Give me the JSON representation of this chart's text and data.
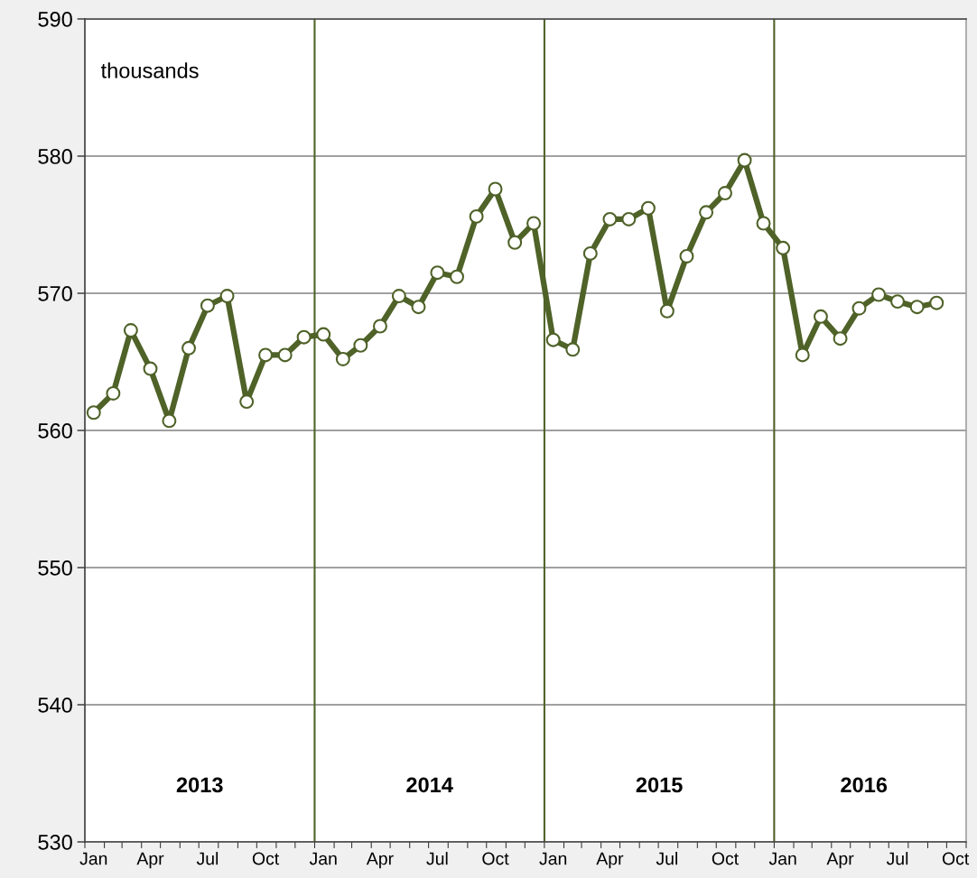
{
  "chart_data": {
    "type": "line",
    "x": [
      "2013-01-15",
      "2013-02-15",
      "2013-03-15",
      "2013-04-15",
      "2013-05-15",
      "2013-06-15",
      "2013-07-15",
      "2013-08-15",
      "2013-09-15",
      "2013-10-15",
      "2013-11-15",
      "2013-12-15",
      "2014-01-15",
      "2014-02-15",
      "2014-03-15",
      "2014-04-15",
      "2014-05-15",
      "2014-06-15",
      "2014-07-15",
      "2014-08-15",
      "2014-09-15",
      "2014-10-15",
      "2014-11-15",
      "2014-12-15",
      "2015-01-15",
      "2015-02-15",
      "2015-03-15",
      "2015-04-15",
      "2015-05-15",
      "2015-06-15",
      "2015-07-15",
      "2015-08-15",
      "2015-09-15",
      "2015-10-15",
      "2015-11-15",
      "2015-12-15",
      "2016-01-15",
      "2016-02-15",
      "2016-03-15",
      "2016-04-15",
      "2016-05-15",
      "2016-06-15",
      "2016-07-15",
      "2016-08-15",
      "2016-09-15"
    ],
    "series": [
      {
        "color": "#4f6228",
        "values": [
          561.3,
          562.7,
          567.3,
          564.5,
          560.7,
          566.0,
          569.1,
          569.8,
          562.1,
          565.5,
          565.5,
          566.8,
          567.0,
          565.2,
          566.2,
          567.6,
          569.8,
          569.0,
          571.5,
          571.2,
          575.6,
          577.6,
          573.7,
          575.1,
          566.6,
          565.9,
          572.9,
          575.4,
          575.4,
          576.2,
          568.7,
          572.7,
          575.9,
          577.3,
          579.7,
          575.1,
          573.3,
          565.5,
          568.3,
          566.7,
          568.9,
          569.9,
          569.4,
          569.0,
          569.3
        ]
      }
    ],
    "xlim": [
      "2013-01-01",
      "2016-11-01"
    ],
    "xticks": [
      {
        "value": "2013-01-15",
        "label": "Jan"
      },
      {
        "value": "2013-04-15",
        "label": "Apr"
      },
      {
        "value": "2013-07-15",
        "label": "Jul"
      },
      {
        "value": "2013-10-15",
        "label": "Oct"
      },
      {
        "value": "2014-01-15",
        "label": "Jan"
      },
      {
        "value": "2014-04-15",
        "label": "Apr"
      },
      {
        "value": "2014-07-15",
        "label": "Jul"
      },
      {
        "value": "2014-10-15",
        "label": "Oct"
      },
      {
        "value": "2015-01-15",
        "label": "Jan"
      },
      {
        "value": "2015-04-15",
        "label": "Apr"
      },
      {
        "value": "2015-07-15",
        "label": "Jul"
      },
      {
        "value": "2015-10-15",
        "label": "Oct"
      },
      {
        "value": "2016-01-15",
        "label": "Jan"
      },
      {
        "value": "2016-04-15",
        "label": "Apr"
      },
      {
        "value": "2016-07-15",
        "label": "Jul"
      },
      {
        "value": "2016-10-15",
        "label": "Oct"
      }
    ],
    "ylim": [
      530,
      590
    ],
    "yticks": [
      530,
      540,
      550,
      560,
      570,
      580,
      590
    ],
    "grid": "y",
    "marker": "circle",
    "line_style": "solid",
    "ref_lines": [
      {
        "axis": "x",
        "value": "2014-01-01",
        "color": "#4f6228"
      },
      {
        "axis": "x",
        "value": "2015-01-01",
        "color": "#4f6228"
      },
      {
        "axis": "x",
        "value": "2016-01-01",
        "color": "#4f6228"
      }
    ],
    "annotations": [
      "thousands",
      "2013",
      "2014",
      "2015",
      "2016"
    ]
  }
}
